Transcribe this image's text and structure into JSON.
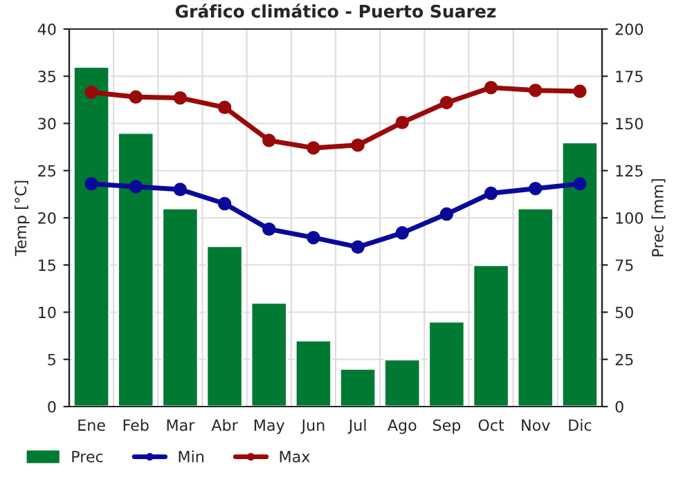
{
  "chart_data": {
    "type": "bar",
    "title": "Gráfico climático - Puerto Suarez",
    "ylabel": "Temp [°C]",
    "y2label": "Prec [mm]",
    "categories": [
      "Ene",
      "Feb",
      "Mar",
      "Abr",
      "May",
      "Jun",
      "Jul",
      "Ago",
      "Sep",
      "Oct",
      "Nov",
      "Dic"
    ],
    "series": [
      {
        "name": "Prec",
        "axis": "y2",
        "color": "#007a33",
        "values": [
          180,
          145,
          105,
          85,
          55,
          35,
          20,
          25,
          45,
          75,
          105,
          140
        ]
      },
      {
        "name": "Min",
        "type": "line",
        "axis": "y",
        "color": "#0a0a9a",
        "values": [
          23.6,
          23.3,
          23.0,
          21.5,
          18.8,
          17.9,
          16.9,
          18.4,
          20.4,
          22.6,
          23.1,
          23.6
        ]
      },
      {
        "name": "Max",
        "type": "line",
        "axis": "y",
        "color": "#9a0a0a",
        "values": [
          33.3,
          32.8,
          32.7,
          31.7,
          28.2,
          27.4,
          27.7,
          30.1,
          32.2,
          33.8,
          33.5,
          33.4
        ]
      }
    ],
    "ylim": [
      0,
      40
    ],
    "yticks": [
      0,
      5,
      10,
      15,
      20,
      25,
      30,
      35,
      40
    ],
    "y2lim": [
      0,
      200
    ],
    "y2ticks": [
      0,
      25,
      50,
      75,
      100,
      125,
      150,
      175,
      200
    ],
    "grid": true,
    "legend": "bottom left",
    "marker": "circle",
    "line_style": "solid"
  }
}
